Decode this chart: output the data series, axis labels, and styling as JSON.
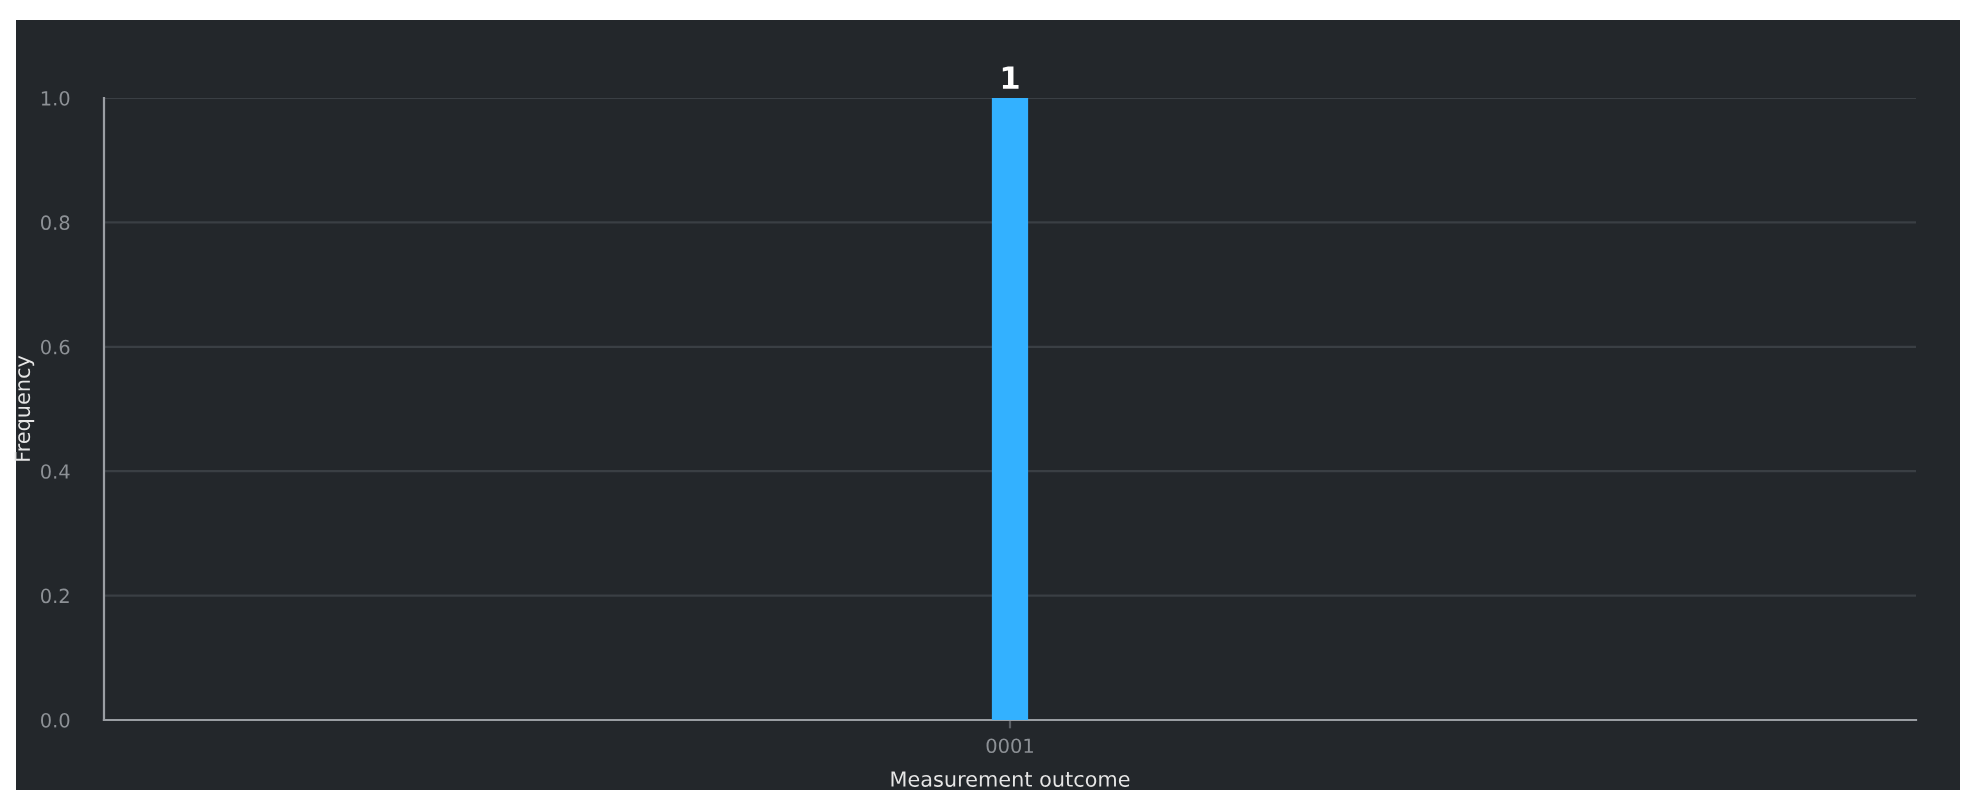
{
  "chart_data": {
    "type": "bar",
    "xlabel": "Measurement outcome",
    "ylabel": "Frequency",
    "categories": [
      "0001"
    ],
    "series": [
      {
        "color": "#33b1ff",
        "values": [
          1
        ]
      }
    ],
    "ylim": [
      0,
      1.0
    ],
    "yticks": [
      {
        "value": 0,
        "label": "0.0"
      },
      0.2,
      0.4,
      0.6,
      0.8,
      {
        "value": 1,
        "label": "1.0"
      }
    ],
    "grid": "y",
    "data_labels": true,
    "legend": false
  }
}
